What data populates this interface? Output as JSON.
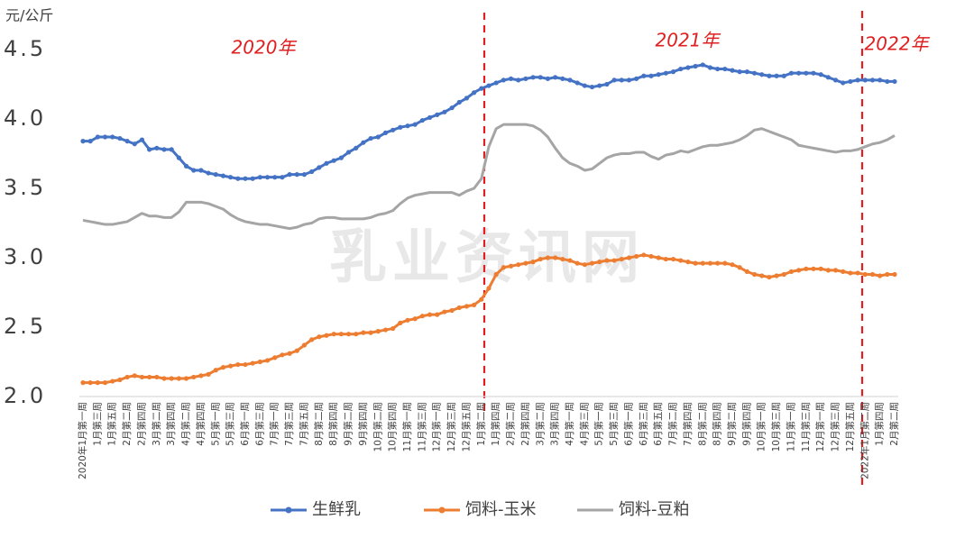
{
  "chart_data": {
    "type": "line",
    "y_unit_label": "元/公斤",
    "watermark": "乳业资讯网",
    "annotations": [
      "2020年",
      "2021年",
      "2022年"
    ],
    "ylim": [
      2.0,
      4.5
    ],
    "yticks": [
      {
        "value": 2.0,
        "label": "2.0"
      },
      2.5,
      {
        "value": 3.0,
        "label": "3.0"
      },
      3.5,
      {
        "value": 4.0,
        "label": "4.0"
      },
      4.5
    ],
    "grid": false,
    "legend": "bottom",
    "categories": [
      "2020年1月第一周",
      null,
      "1月第三周",
      null,
      "1月第五周",
      null,
      "2月第二周",
      null,
      "2月第四周",
      null,
      "3月第二周",
      null,
      "3月第四周",
      null,
      "4月第二周",
      null,
      "4月第四周",
      null,
      "5月第一周",
      null,
      "5月第三周",
      null,
      "6月第一周",
      null,
      "6月第三周",
      null,
      "7月第一周",
      null,
      "7月第三周",
      null,
      "7月第五周",
      null,
      "8月第二周",
      null,
      "8月第四周",
      null,
      "9月第二周",
      null,
      "9月第四周",
      null,
      "10月第二周",
      null,
      "10月第四周",
      null,
      "11月第一周",
      null,
      "11月第三周",
      null,
      "12月第一周",
      null,
      "12月第三周",
      null,
      "12月第五周",
      null,
      "1月第二周",
      null,
      "1月第四周",
      null,
      "2月第二周",
      null,
      "2月第四周",
      null,
      "3月第二周",
      null,
      "3月第四周",
      null,
      "4月第一周",
      null,
      "4月第三周",
      null,
      "5月第一周",
      null,
      "5月第三周",
      null,
      "6月第一周",
      null,
      "6月第三周",
      null,
      "6月第五周",
      null,
      "7月第二周",
      null,
      "7月第四周",
      null,
      "8月第二周",
      null,
      "8月第四周",
      null,
      "9月第二周",
      null,
      "9月第四周",
      null,
      "10月第一周",
      null,
      "10月第三周",
      null,
      "11月第一周",
      null,
      "11月第三周",
      null,
      "12月第一周",
      null,
      "12月第三周",
      null,
      "12月第五周",
      null,
      "2022年1月第二周",
      null,
      "1月第四周",
      null,
      "2月第二周"
    ],
    "series": [
      {
        "name": "生鲜乳",
        "color": "#4472c4",
        "markers": true,
        "values": [
          3.84,
          3.84,
          3.87,
          3.87,
          3.87,
          3.86,
          3.84,
          3.82,
          3.85,
          3.78,
          3.79,
          3.78,
          3.78,
          3.72,
          3.66,
          3.63,
          3.63,
          3.61,
          3.6,
          3.59,
          3.58,
          3.57,
          3.57,
          3.57,
          3.58,
          3.58,
          3.58,
          3.58,
          3.6,
          3.6,
          3.6,
          3.62,
          3.65,
          3.68,
          3.7,
          3.72,
          3.76,
          3.79,
          3.83,
          3.86,
          3.87,
          3.9,
          3.92,
          3.94,
          3.95,
          3.96,
          3.99,
          4.01,
          4.03,
          4.05,
          4.08,
          4.12,
          4.15,
          4.19,
          4.22,
          4.24,
          4.26,
          4.28,
          4.29,
          4.28,
          4.29,
          4.3,
          4.3,
          4.29,
          4.3,
          4.29,
          4.28,
          4.26,
          4.24,
          4.23,
          4.24,
          4.25,
          4.28,
          4.28,
          4.28,
          4.29,
          4.31,
          4.31,
          4.32,
          4.33,
          4.34,
          4.36,
          4.37,
          4.38,
          4.39,
          4.37,
          4.36,
          4.36,
          4.35,
          4.34,
          4.34,
          4.33,
          4.32,
          4.31,
          4.31,
          4.31,
          4.33,
          4.33,
          4.33,
          4.33,
          4.32,
          4.3,
          4.28,
          4.26,
          4.27,
          4.28,
          4.28,
          4.28,
          4.28,
          4.27,
          4.27
        ]
      },
      {
        "name": "饲料-玉米",
        "color": "#ed7d31",
        "markers": true,
        "values": [
          2.1,
          2.1,
          2.1,
          2.1,
          2.11,
          2.12,
          2.14,
          2.15,
          2.14,
          2.14,
          2.14,
          2.13,
          2.13,
          2.13,
          2.13,
          2.14,
          2.15,
          2.16,
          2.19,
          2.21,
          2.22,
          2.23,
          2.23,
          2.24,
          2.25,
          2.26,
          2.28,
          2.3,
          2.31,
          2.33,
          2.37,
          2.41,
          2.43,
          2.44,
          2.45,
          2.45,
          2.45,
          2.45,
          2.46,
          2.46,
          2.47,
          2.48,
          2.49,
          2.53,
          2.55,
          2.56,
          2.58,
          2.59,
          2.59,
          2.61,
          2.62,
          2.64,
          2.65,
          2.66,
          2.7,
          2.78,
          2.88,
          2.93,
          2.94,
          2.95,
          2.96,
          2.97,
          2.99,
          3.0,
          3.0,
          2.99,
          2.98,
          2.96,
          2.95,
          2.96,
          2.97,
          2.98,
          2.98,
          2.99,
          3.0,
          3.01,
          3.02,
          3.01,
          3.0,
          2.99,
          2.99,
          2.98,
          2.97,
          2.96,
          2.96,
          2.96,
          2.96,
          2.96,
          2.95,
          2.93,
          2.9,
          2.88,
          2.87,
          2.86,
          2.87,
          2.88,
          2.9,
          2.91,
          2.92,
          2.92,
          2.92,
          2.91,
          2.91,
          2.9,
          2.89,
          2.89,
          2.88,
          2.88,
          2.87,
          2.88,
          2.88
        ]
      },
      {
        "name": "饲料-豆粕",
        "color": "#a5a5a5",
        "markers": false,
        "values": [
          3.27,
          3.26,
          3.25,
          3.24,
          3.24,
          3.25,
          3.26,
          3.29,
          3.32,
          3.3,
          3.3,
          3.29,
          3.29,
          3.33,
          3.4,
          3.4,
          3.4,
          3.39,
          3.37,
          3.35,
          3.31,
          3.28,
          3.26,
          3.25,
          3.24,
          3.24,
          3.23,
          3.22,
          3.21,
          3.22,
          3.24,
          3.25,
          3.28,
          3.29,
          3.29,
          3.28,
          3.28,
          3.28,
          3.28,
          3.29,
          3.31,
          3.32,
          3.34,
          3.39,
          3.43,
          3.45,
          3.46,
          3.47,
          3.47,
          3.47,
          3.47,
          3.45,
          3.48,
          3.5,
          3.57,
          3.8,
          3.93,
          3.96,
          3.96,
          3.96,
          3.96,
          3.95,
          3.92,
          3.87,
          3.79,
          3.72,
          3.68,
          3.66,
          3.63,
          3.64,
          3.68,
          3.72,
          3.74,
          3.75,
          3.75,
          3.76,
          3.76,
          3.73,
          3.71,
          3.74,
          3.75,
          3.77,
          3.76,
          3.78,
          3.8,
          3.81,
          3.81,
          3.82,
          3.83,
          3.85,
          3.88,
          3.92,
          3.93,
          3.91,
          3.89,
          3.87,
          3.85,
          3.81,
          3.8,
          3.79,
          3.78,
          3.77,
          3.76,
          3.77,
          3.77,
          3.78,
          3.8,
          3.82,
          3.83,
          3.85,
          3.88
        ]
      }
    ]
  }
}
